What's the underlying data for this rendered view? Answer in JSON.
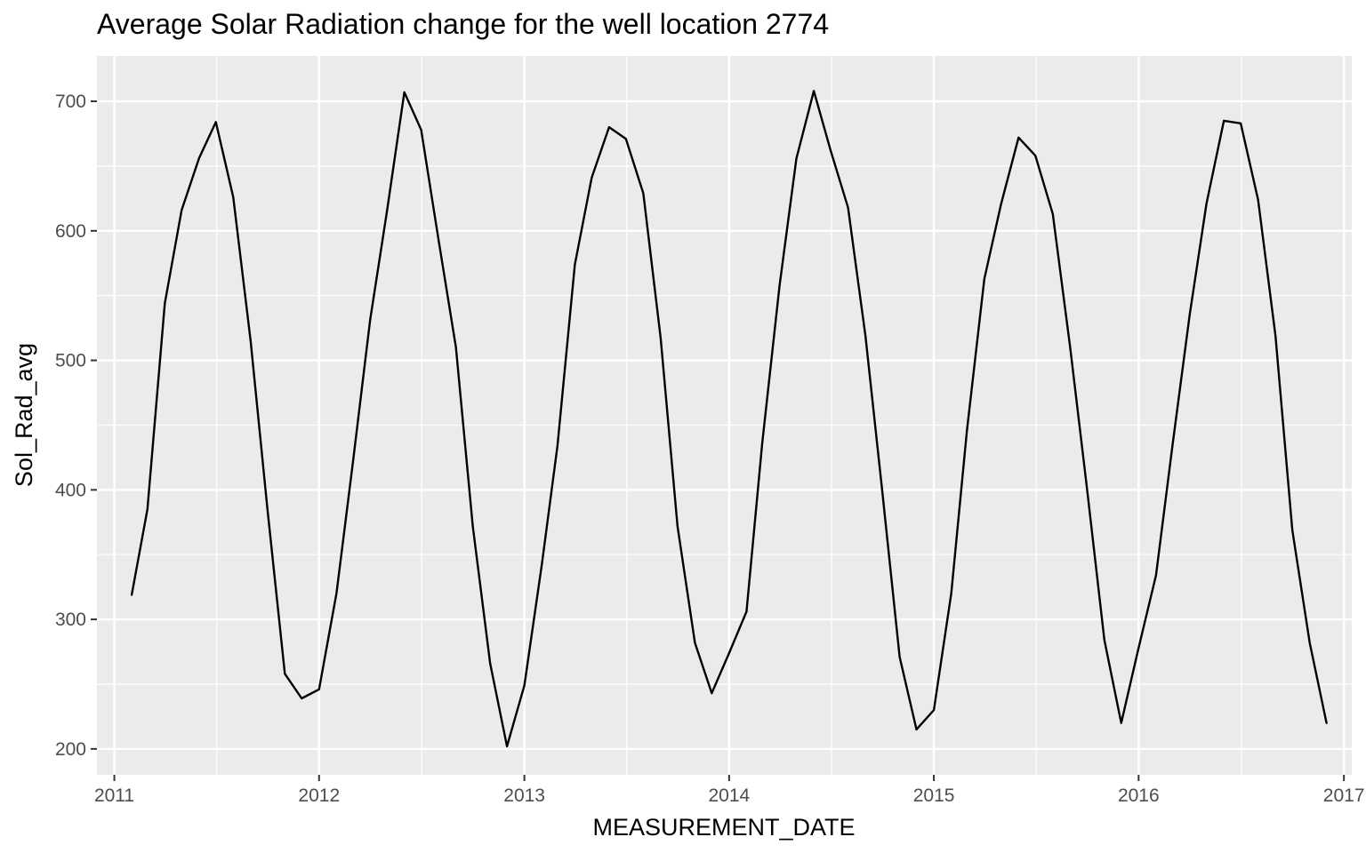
{
  "chart_data": {
    "type": "line",
    "title": "Average Solar Radiation change for the well location 2774",
    "xlabel": "MEASUREMENT_DATE",
    "ylabel": "Sol_Rad_avg",
    "x_axis": "date",
    "xlim": [
      "2010-12-01",
      "2017-01-15"
    ],
    "ylim": [
      180,
      735
    ],
    "x_ticks": [
      {
        "label": "2011",
        "value": "2011-01-01"
      },
      {
        "label": "2012",
        "value": "2012-01-01"
      },
      {
        "label": "2013",
        "value": "2013-01-01"
      },
      {
        "label": "2014",
        "value": "2014-01-01"
      },
      {
        "label": "2015",
        "value": "2015-01-01"
      },
      {
        "label": "2016",
        "value": "2016-01-01"
      },
      {
        "label": "2017",
        "value": "2017-01-01"
      }
    ],
    "y_ticks": [
      200,
      300,
      400,
      500,
      600,
      700
    ],
    "grid": true,
    "colors": {
      "panel": "#ebebeb",
      "grid": "#ffffff",
      "line": "#000000"
    },
    "series": [
      {
        "points": [
          [
            "2011-02-01",
            319
          ],
          [
            "2011-03-01",
            385
          ],
          [
            "2011-04-01",
            544
          ],
          [
            "2011-05-01",
            616
          ],
          [
            "2011-06-01",
            656
          ],
          [
            "2011-07-01",
            684
          ],
          [
            "2011-08-01",
            626
          ],
          [
            "2011-09-01",
            515
          ],
          [
            "2011-10-01",
            385
          ],
          [
            "2011-11-01",
            258
          ],
          [
            "2011-12-01",
            239
          ],
          [
            "2012-01-01",
            246
          ],
          [
            "2012-02-01",
            320
          ],
          [
            "2012-03-01",
            420
          ],
          [
            "2012-04-01",
            531
          ],
          [
            "2012-05-01",
            615
          ],
          [
            "2012-06-01",
            707
          ],
          [
            "2012-07-01",
            678
          ],
          [
            "2012-08-01",
            593
          ],
          [
            "2012-09-01",
            510
          ],
          [
            "2012-10-01",
            372
          ],
          [
            "2012-11-01",
            266
          ],
          [
            "2012-12-01",
            202
          ],
          [
            "2013-01-01",
            249
          ],
          [
            "2013-02-01",
            342
          ],
          [
            "2013-03-01",
            434
          ],
          [
            "2013-04-01",
            574
          ],
          [
            "2013-05-01",
            641
          ],
          [
            "2013-06-01",
            680
          ],
          [
            "2013-07-01",
            671
          ],
          [
            "2013-08-01",
            629
          ],
          [
            "2013-09-01",
            517
          ],
          [
            "2013-10-01",
            372
          ],
          [
            "2013-11-01",
            282
          ],
          [
            "2013-12-01",
            243
          ],
          [
            "2014-01-01",
            274
          ],
          [
            "2014-02-01",
            306
          ],
          [
            "2014-03-01",
            436
          ],
          [
            "2014-04-01",
            558
          ],
          [
            "2014-05-01",
            656
          ],
          [
            "2014-06-01",
            708
          ],
          [
            "2014-07-01",
            662
          ],
          [
            "2014-08-01",
            618
          ],
          [
            "2014-09-01",
            519
          ],
          [
            "2014-10-01",
            399
          ],
          [
            "2014-11-01",
            271
          ],
          [
            "2014-12-01",
            215
          ],
          [
            "2015-01-01",
            230
          ],
          [
            "2015-02-01",
            320
          ],
          [
            "2015-03-01",
            446
          ],
          [
            "2015-04-01",
            563
          ],
          [
            "2015-05-01",
            621
          ],
          [
            "2015-06-01",
            672
          ],
          [
            "2015-07-01",
            658
          ],
          [
            "2015-08-01",
            613
          ],
          [
            "2015-09-01",
            510
          ],
          [
            "2015-10-01",
            401
          ],
          [
            "2015-11-01",
            284
          ],
          [
            "2015-12-01",
            220
          ],
          [
            "2016-01-01",
            278
          ],
          [
            "2016-02-01",
            334
          ],
          [
            "2016-03-01",
            433
          ],
          [
            "2016-04-01",
            535
          ],
          [
            "2016-05-01",
            621
          ],
          [
            "2016-06-01",
            685
          ],
          [
            "2016-07-01",
            683
          ],
          [
            "2016-08-01",
            624
          ],
          [
            "2016-09-01",
            519
          ],
          [
            "2016-10-01",
            369
          ],
          [
            "2016-11-01",
            282
          ],
          [
            "2016-12-01",
            220
          ]
        ]
      }
    ]
  }
}
